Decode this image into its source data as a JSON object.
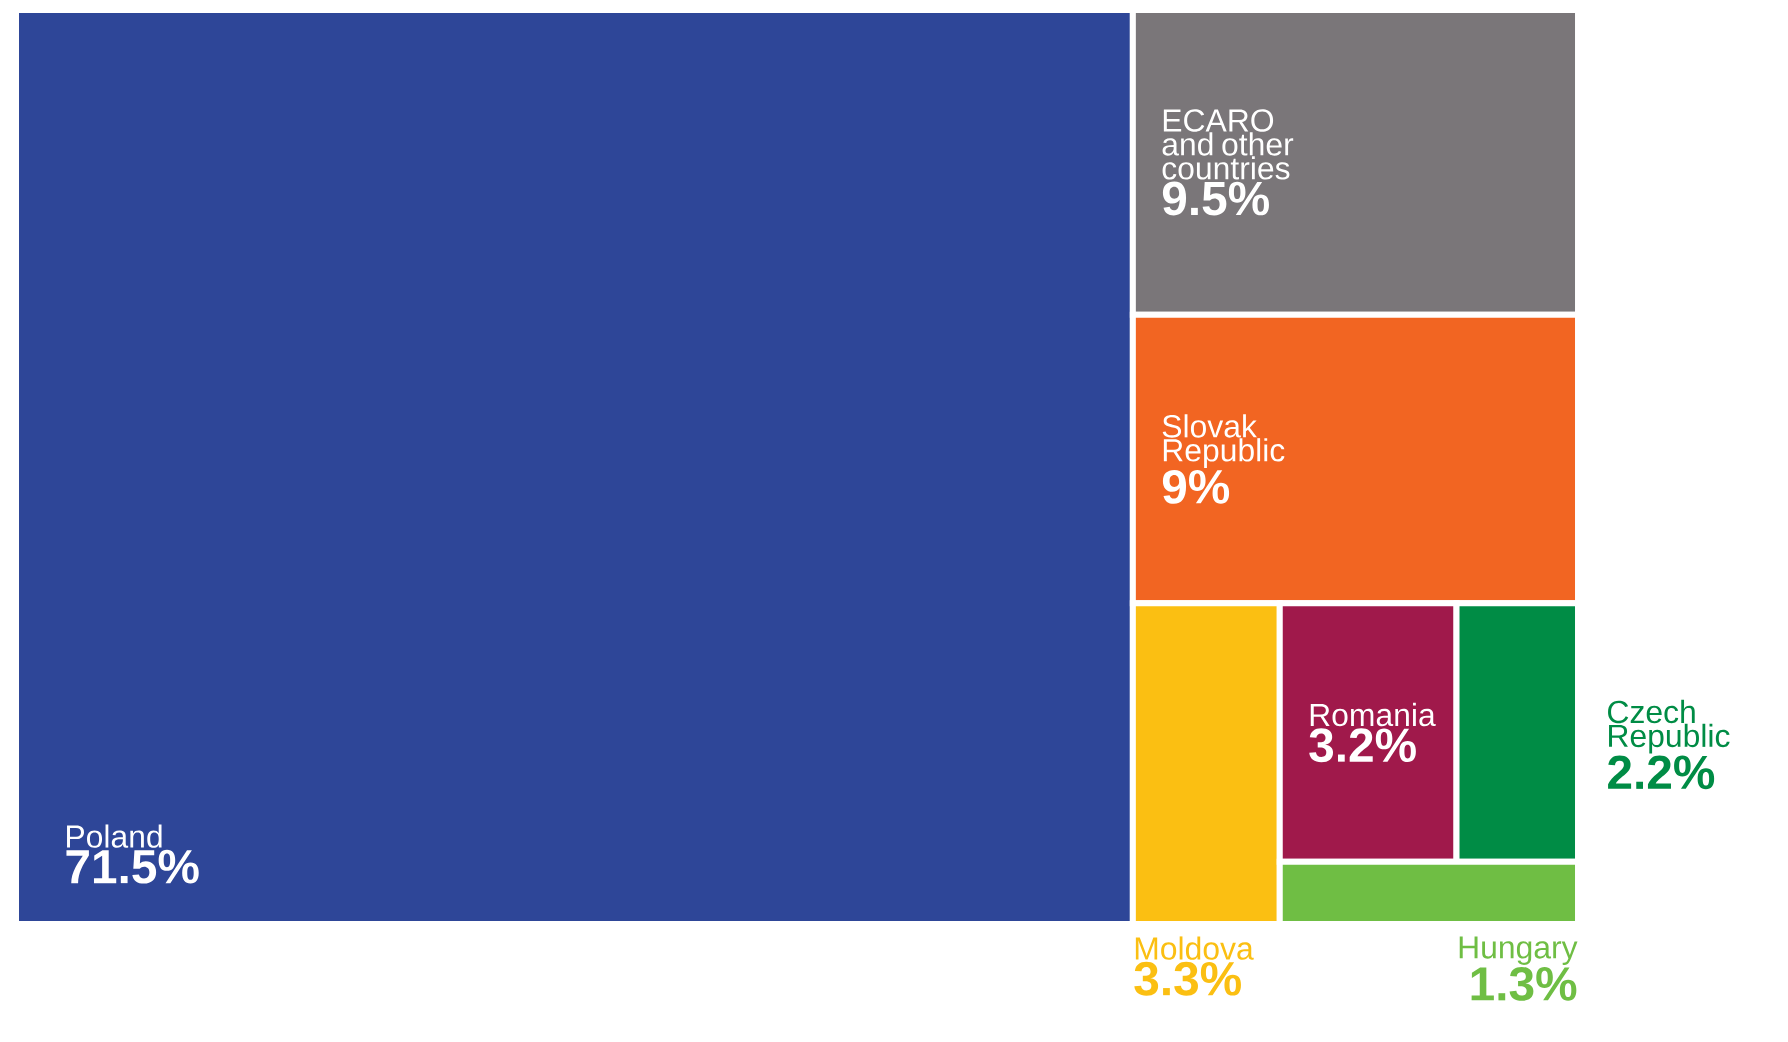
{
  "chart_data": {
    "type": "other",
    "categories": [
      "Poland",
      "ECARO and other countries",
      "Slovak Republic",
      "Moldova",
      "Romania",
      "Czech Republic",
      "Hungary"
    ],
    "values": [
      71.5,
      9.5,
      9,
      3.3,
      3.2,
      2.2,
      1.3
    ],
    "value_labels": [
      "71.5%",
      "9.5%",
      "9%",
      "3.3%",
      "3.2%",
      "2.2%",
      "1.3%"
    ],
    "colors": [
      "#2e4698",
      "#7a7679",
      "#f26522",
      "#fbbf12",
      "#a0194b",
      "#008c45",
      "#6fbe44"
    ]
  }
}
